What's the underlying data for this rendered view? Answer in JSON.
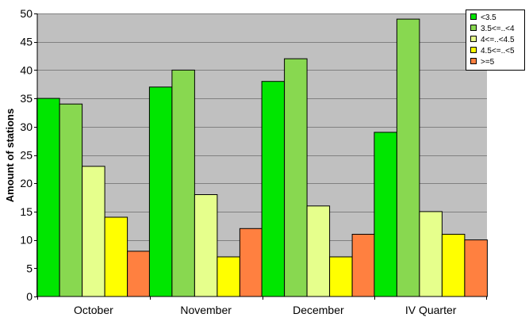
{
  "chart_data": {
    "type": "bar",
    "title": "",
    "xlabel": "",
    "ylabel": "Amount of stations",
    "ylim": [
      0,
      50
    ],
    "yticks": [
      0,
      5,
      10,
      15,
      20,
      25,
      30,
      35,
      40,
      45,
      50
    ],
    "grid": true,
    "legend_position": "top-right",
    "categories": [
      "October",
      "November",
      "December",
      "IV Quarter"
    ],
    "series": [
      {
        "name": "<3.5",
        "color": "#00e600",
        "values": [
          35,
          37,
          38,
          29
        ]
      },
      {
        "name": "3.5<=..<4",
        "color": "#88d850",
        "values": [
          34,
          40,
          42,
          49
        ]
      },
      {
        "name": "4<=..<4.5",
        "color": "#e6ff8c",
        "values": [
          23,
          18,
          16,
          15
        ]
      },
      {
        "name": "4.5<=..<5",
        "color": "#ffff00",
        "values": [
          14,
          7,
          7,
          11
        ]
      },
      {
        "name": ">=5",
        "color": "#ff8040",
        "values": [
          8,
          12,
          11,
          10
        ]
      }
    ],
    "plot_background": "#c0c0c0"
  }
}
